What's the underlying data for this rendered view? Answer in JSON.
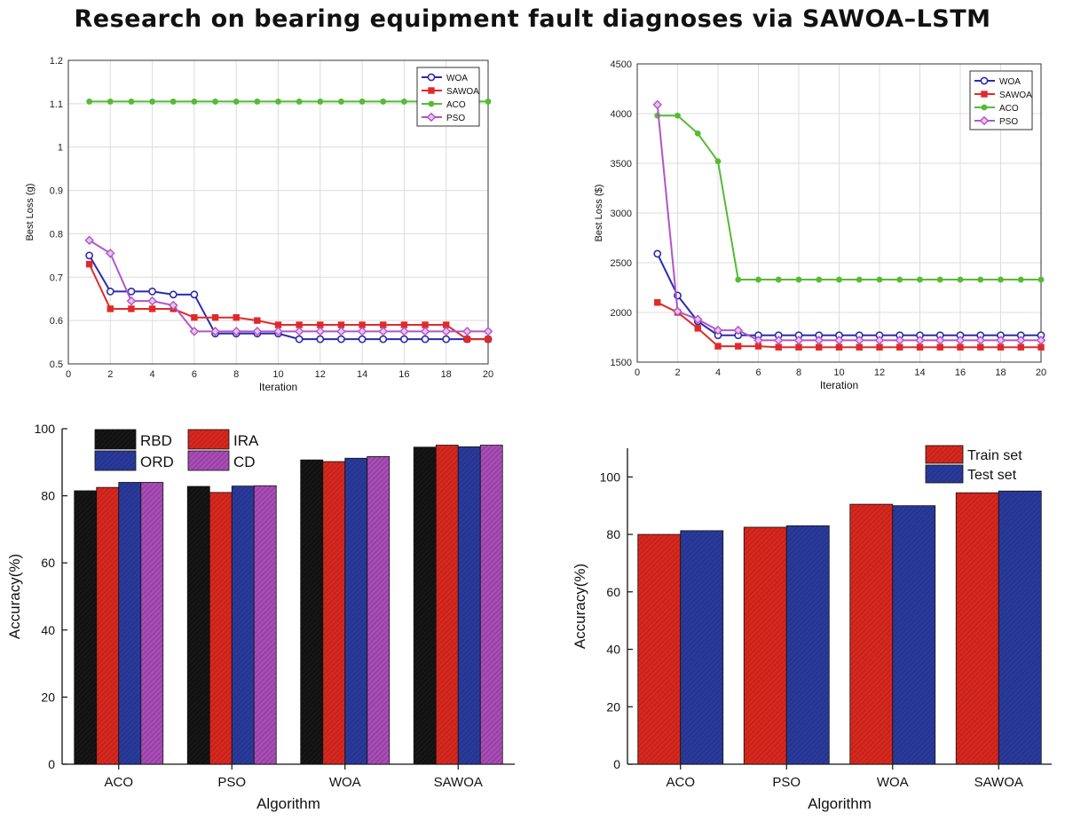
{
  "title": "Research on bearing equipment fault diagnoses via SAWOA–LSTM",
  "colors": {
    "woa": "#2b2bb0",
    "sawoa": "#e02a2a",
    "aco": "#55bb33",
    "pso": "#b155c8",
    "rbd": "#111111",
    "ira": "#d6281f",
    "ord": "#2a3a9a",
    "cd": "#a84db5",
    "train": "#d6281f",
    "test": "#2a3a9a"
  },
  "chart_data": [
    {
      "type": "line",
      "title": "",
      "xlabel": "Iteration",
      "ylabel": "Best Loss (g)",
      "xlim": [
        0,
        20
      ],
      "ylim": [
        0.5,
        1.2
      ],
      "xticks": [
        "0",
        "2",
        "4",
        "6",
        "8",
        "10",
        "12",
        "14",
        "16",
        "18",
        "20"
      ],
      "yticks": [
        "0.5",
        "0.6",
        "0.7",
        "0.8",
        "0.9",
        "1",
        "1.1",
        "1.2"
      ],
      "grid": true,
      "legend": "top-right",
      "x": [
        1,
        2,
        3,
        4,
        5,
        6,
        7,
        8,
        9,
        10,
        11,
        12,
        13,
        14,
        15,
        16,
        17,
        18,
        19,
        20
      ],
      "series": [
        {
          "name": "WOA",
          "marker": "circle",
          "values": [
            0.75,
            0.667,
            0.667,
            0.667,
            0.66,
            0.66,
            0.57,
            0.57,
            0.57,
            0.57,
            0.557,
            0.557,
            0.557,
            0.557,
            0.557,
            0.557,
            0.557,
            0.557,
            0.557,
            0.557
          ]
        },
        {
          "name": "SAWOA",
          "marker": "square",
          "values": [
            0.73,
            0.627,
            0.627,
            0.627,
            0.627,
            0.607,
            0.607,
            0.607,
            0.6,
            0.59,
            0.59,
            0.59,
            0.59,
            0.59,
            0.59,
            0.59,
            0.59,
            0.59,
            0.557,
            0.557
          ]
        },
        {
          "name": "ACO",
          "marker": "dot",
          "values": [
            1.105,
            1.105,
            1.105,
            1.105,
            1.105,
            1.105,
            1.105,
            1.105,
            1.105,
            1.105,
            1.105,
            1.105,
            1.105,
            1.105,
            1.105,
            1.105,
            1.105,
            1.105,
            1.105,
            1.105
          ]
        },
        {
          "name": "PSO",
          "marker": "diamond",
          "values": [
            0.785,
            0.755,
            0.645,
            0.645,
            0.635,
            0.575,
            0.575,
            0.575,
            0.575,
            0.575,
            0.575,
            0.575,
            0.575,
            0.575,
            0.575,
            0.575,
            0.575,
            0.575,
            0.575,
            0.575
          ]
        }
      ]
    },
    {
      "type": "line",
      "title": "",
      "xlabel": "Iteration",
      "ylabel": "Best Loss ($)",
      "xlim": [
        0,
        20
      ],
      "ylim": [
        1500,
        4500
      ],
      "xticks": [
        "0",
        "2",
        "4",
        "6",
        "8",
        "10",
        "12",
        "14",
        "16",
        "18",
        "20"
      ],
      "yticks": [
        "1500",
        "2000",
        "2500",
        "3000",
        "3500",
        "4000",
        "4500"
      ],
      "grid": true,
      "legend": "top-right",
      "x": [
        1,
        2,
        3,
        4,
        5,
        6,
        7,
        8,
        9,
        10,
        11,
        12,
        13,
        14,
        15,
        16,
        17,
        18,
        19,
        20
      ],
      "series": [
        {
          "name": "WOA",
          "marker": "circle",
          "values": [
            2590,
            2170,
            1910,
            1770,
            1770,
            1770,
            1770,
            1770,
            1770,
            1770,
            1770,
            1770,
            1770,
            1770,
            1770,
            1770,
            1770,
            1770,
            1770,
            1770
          ]
        },
        {
          "name": "SAWOA",
          "marker": "square",
          "values": [
            2100,
            2000,
            1840,
            1660,
            1660,
            1660,
            1650,
            1650,
            1650,
            1650,
            1650,
            1650,
            1650,
            1650,
            1650,
            1650,
            1650,
            1650,
            1650,
            1650
          ]
        },
        {
          "name": "ACO",
          "marker": "dot",
          "values": [
            3980,
            3980,
            3800,
            3520,
            2330,
            2330,
            2330,
            2330,
            2330,
            2330,
            2330,
            2330,
            2330,
            2330,
            2330,
            2330,
            2330,
            2330,
            2330,
            2330
          ]
        },
        {
          "name": "PSO",
          "marker": "diamond",
          "values": [
            4090,
            2010,
            1930,
            1820,
            1820,
            1720,
            1720,
            1720,
            1720,
            1720,
            1720,
            1720,
            1720,
            1720,
            1720,
            1720,
            1720,
            1720,
            1720,
            1720
          ]
        }
      ]
    },
    {
      "type": "bar",
      "title": "",
      "xlabel": "Algorithm",
      "ylabel": "Accuracy(%)",
      "ylim": [
        0,
        100
      ],
      "yticks": [
        "0",
        "20",
        "40",
        "60",
        "80",
        "100"
      ],
      "grid": false,
      "legend": "top-left",
      "categories": [
        "ACO",
        "PSO",
        "WOA",
        "SAWOA"
      ],
      "series": [
        {
          "name": "RBD",
          "values": [
            81.5,
            82.8,
            90.7,
            94.5
          ]
        },
        {
          "name": "IRA",
          "values": [
            82.5,
            81.0,
            90.2,
            95.1
          ]
        },
        {
          "name": "ORD",
          "values": [
            84.0,
            82.9,
            91.2,
            94.6
          ]
        },
        {
          "name": "CD",
          "values": [
            84.0,
            83.0,
            91.7,
            95.1
          ]
        }
      ]
    },
    {
      "type": "bar",
      "title": "",
      "xlabel": "Algorithm",
      "ylabel": "Accuracy(%)",
      "ylim": [
        0,
        110
      ],
      "yticks": [
        "0",
        "20",
        "40",
        "60",
        "80",
        "100"
      ],
      "grid": false,
      "legend": "top-right",
      "categories": [
        "ACO",
        "PSO",
        "WOA",
        "SAWOA"
      ],
      "series": [
        {
          "name": "Train set",
          "values": [
            80.0,
            82.5,
            90.5,
            94.5
          ]
        },
        {
          "name": "Test set",
          "values": [
            81.3,
            83.0,
            90.0,
            95.1
          ]
        }
      ]
    }
  ]
}
